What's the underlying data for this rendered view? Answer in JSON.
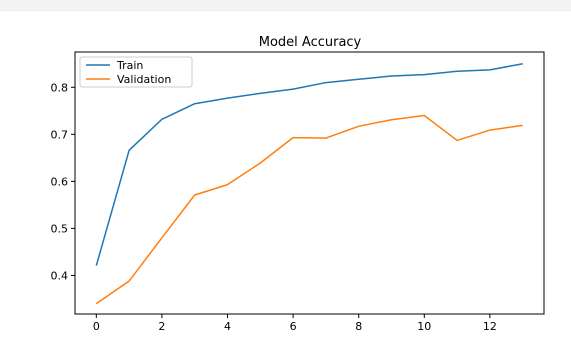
{
  "chart_data": {
    "type": "line",
    "title": "Model Accuracy",
    "x": [
      0,
      1,
      2,
      3,
      4,
      5,
      6,
      7,
      8,
      9,
      10,
      11,
      12,
      13
    ],
    "xlim": [
      -0.65,
      13.65
    ],
    "ylim": [
      0.318,
      0.875
    ],
    "xticks": [
      0,
      2,
      4,
      6,
      8,
      10,
      12
    ],
    "yticks": [
      0.4,
      0.5,
      0.6,
      0.7,
      0.8
    ],
    "series": [
      {
        "name": "Train",
        "color": "#1f77b4",
        "values": [
          0.421,
          0.666,
          0.732,
          0.765,
          0.777,
          0.787,
          0.796,
          0.81,
          0.817,
          0.824,
          0.827,
          0.834,
          0.837,
          0.85
        ]
      },
      {
        "name": "Validation",
        "color": "#ff7f0e",
        "values": [
          0.34,
          0.388,
          0.48,
          0.571,
          0.593,
          0.639,
          0.693,
          0.692,
          0.717,
          0.731,
          0.74,
          0.687,
          0.709,
          0.719
        ]
      }
    ],
    "grid": false,
    "legend": "top-left"
  }
}
